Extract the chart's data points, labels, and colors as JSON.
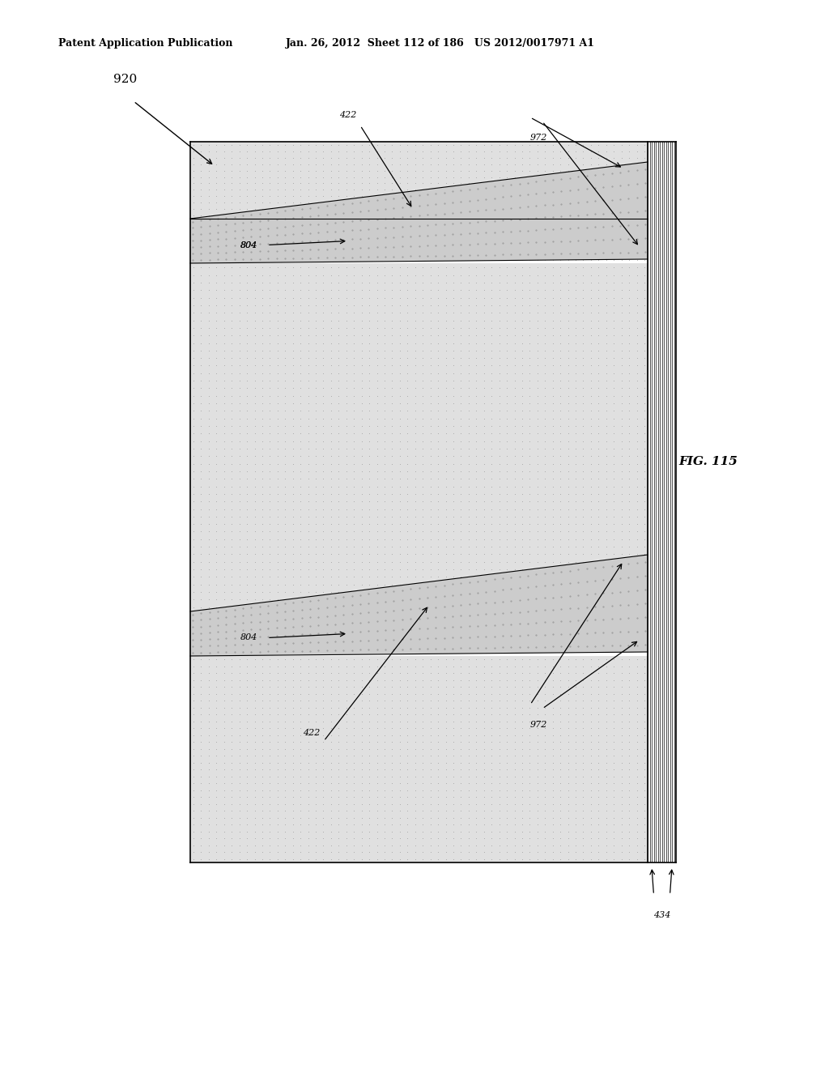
{
  "header_left": "Patent Application Publication",
  "header_mid": "Jan. 26, 2012  Sheet 112 of 186   US 2012/0017971 A1",
  "fig_label": "FIG. 115",
  "label_920": "920",
  "background": "#ffffff",
  "dot_color": "#888888",
  "band_dot_color": "#aaaaaa",
  "stripe_color": "#666666",
  "line_color": "#000000"
}
